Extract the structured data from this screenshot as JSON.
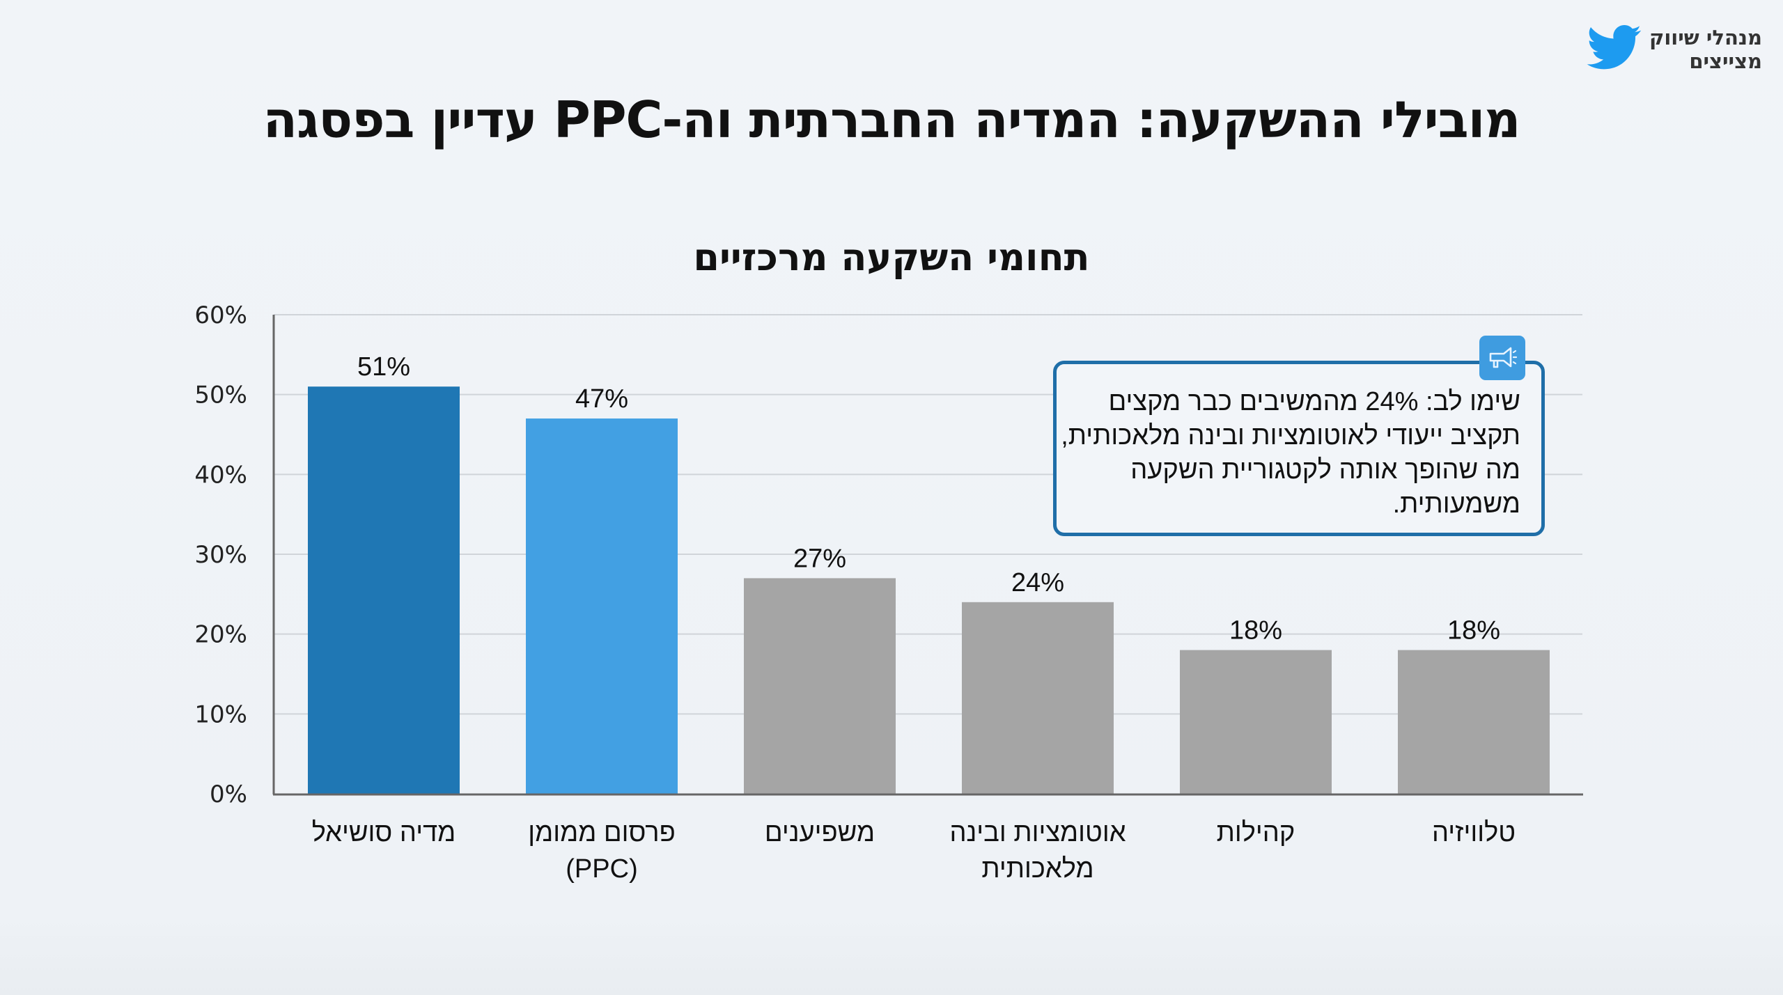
{
  "logo": {
    "icon": "twitter-bird-icon",
    "line1": "מנהלי שיווק",
    "line2": "מצייצים",
    "color": "#1d9bf0"
  },
  "header": {
    "title": "מובילי ההשקעה: המדיה החברתית וה-PPC עדיין בפסגה"
  },
  "callout": {
    "icon": "megaphone-icon",
    "text": "שימו לב: 24% מהמשיבים כבר מקצים תקציב ייעודי לאוטומציות ובינה מלאכותית, מה שהופך אותה לקטגוריית השקעה משמעותית.",
    "border_color": "#1f6ea8",
    "icon_bg": "#3f9ce0"
  },
  "chart_data": {
    "type": "bar",
    "title": "תחומי השקעה מרכזיים",
    "xlabel": "",
    "ylabel": "",
    "ylim": [
      0,
      60
    ],
    "yticks": [
      0,
      10,
      20,
      30,
      40,
      50,
      60
    ],
    "ytick_labels": [
      "0%",
      "10%",
      "20%",
      "30%",
      "40%",
      "50%",
      "60%"
    ],
    "grid": true,
    "categories": [
      [
        "מדיה סושיאל"
      ],
      [
        "פרסום ממומן",
        "(PPC)"
      ],
      [
        "משפיענים"
      ],
      [
        "אוטומציות ובינה",
        "מלאכותית"
      ],
      [
        "קהילות"
      ],
      [
        "טלוויזיה"
      ]
    ],
    "values": [
      51,
      47,
      27,
      24,
      18,
      18
    ],
    "data_labels": [
      "51%",
      "47%",
      "27%",
      "24%",
      "18%",
      "18%"
    ],
    "colors": [
      "#1f77b4",
      "#42a0e3",
      "#a5a5a5",
      "#a5a5a5",
      "#a5a5a5",
      "#a5a5a5"
    ]
  }
}
